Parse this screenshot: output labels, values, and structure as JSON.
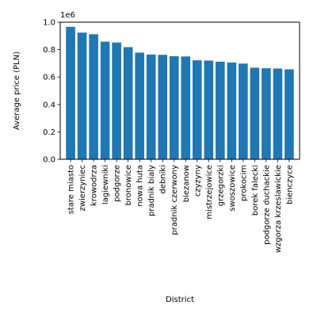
{
  "chart_data": {
    "type": "bar",
    "categories": [
      "stare miasto",
      "zwierzyniec",
      "krowodrza",
      "lagiewniki",
      "podgorze",
      "bronowice",
      "nowa huta",
      "pradnik bialy",
      "debniki",
      "pradnik czerwony",
      "biezanow",
      "czyzyny",
      "mistrzejowice",
      "grzegorzki",
      "swoszowice",
      "prokocim",
      "borek falecki",
      "podgorze duchackie",
      "wzgorza krzeslawickie",
      "bienczyce"
    ],
    "values": [
      966000,
      924000,
      912000,
      858000,
      852000,
      818000,
      778000,
      764000,
      762000,
      752000,
      750000,
      722000,
      720000,
      712000,
      706000,
      698000,
      668000,
      664000,
      662000,
      656000
    ],
    "xlabel": "District",
    "ylabel": "Average price (PLN)",
    "offset_text": "1e6",
    "ylim": [
      0,
      1000000
    ],
    "yticks": [
      "0.0",
      "0.2",
      "0.4",
      "0.6",
      "0.8",
      "1.0"
    ],
    "bar_color": "#1f77b4",
    "grid": false
  }
}
